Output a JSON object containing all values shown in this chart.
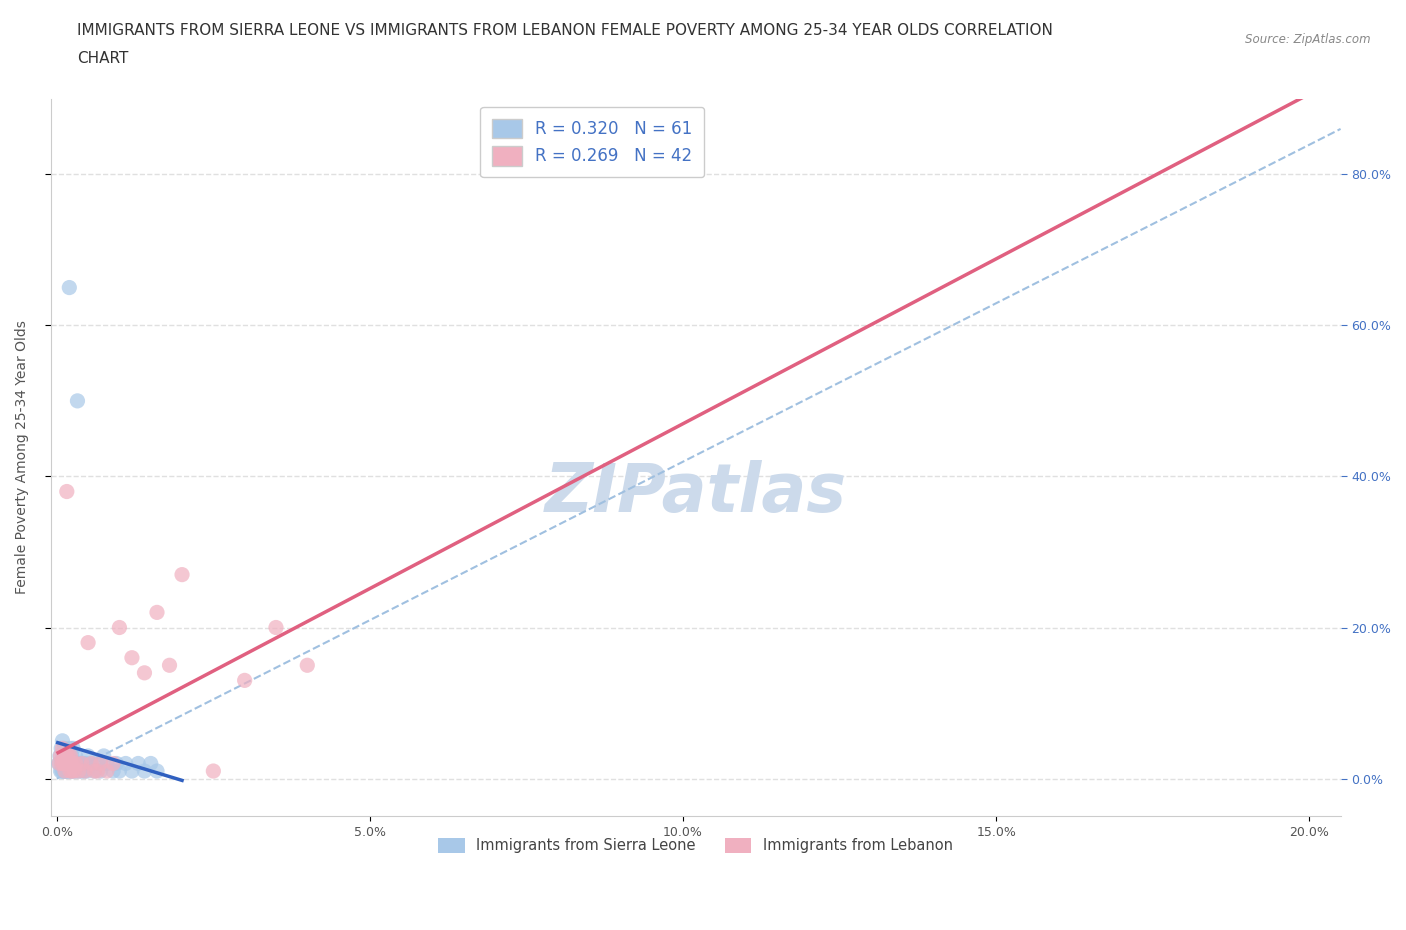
{
  "title_line1": "IMMIGRANTS FROM SIERRA LEONE VS IMMIGRANTS FROM LEBANON FEMALE POVERTY AMONG 25-34 YEAR OLDS CORRELATION",
  "title_line2": "CHART",
  "source": "Source: ZipAtlas.com",
  "ylabel": "Female Poverty Among 25-34 Year Olds",
  "xlim": [
    -0.001,
    0.205
  ],
  "ylim": [
    -0.05,
    0.9
  ],
  "yticks": [
    0.0,
    0.2,
    0.4,
    0.6,
    0.8
  ],
  "right_ytick_labels": [
    "0.0%",
    "20.0%",
    "40.0%",
    "60.0%",
    "80.0%"
  ],
  "xticks": [
    0.0,
    0.05,
    0.1,
    0.15,
    0.2
  ],
  "xtick_labels": [
    "0.0%",
    "5.0%",
    "10.0%",
    "15.0%",
    "20.0%"
  ],
  "sierra_leone_color": "#a8c8e8",
  "lebanon_color": "#f0b0c0",
  "sierra_leone_trend_color": "#3060c0",
  "lebanon_trend_color": "#e06080",
  "dashed_line_color": "#a0c0e0",
  "sierra_leone_R": 0.32,
  "sierra_leone_N": 61,
  "lebanon_R": 0.269,
  "lebanon_N": 42,
  "watermark": "ZIPatlas",
  "legend1_label": "Immigrants from Sierra Leone",
  "legend2_label": "Immigrants from Lebanon",
  "background_color": "#ffffff",
  "grid_color": "#e0e0e0",
  "title_fontsize": 11,
  "axis_label_fontsize": 10,
  "tick_fontsize": 9,
  "watermark_color": "#ccdaeb",
  "watermark_fontsize": 48,
  "sierra_leone_x": [
    0.0003,
    0.0005,
    0.0006,
    0.0007,
    0.0008,
    0.0008,
    0.0009,
    0.001,
    0.001,
    0.0011,
    0.0012,
    0.0012,
    0.0013,
    0.0013,
    0.0014,
    0.0015,
    0.0015,
    0.0016,
    0.0016,
    0.0017,
    0.0018,
    0.0019,
    0.0019,
    0.002,
    0.0021,
    0.0021,
    0.0022,
    0.0023,
    0.0024,
    0.0025,
    0.0026,
    0.0027,
    0.0028,
    0.003,
    0.0031,
    0.0032,
    0.0033,
    0.0035,
    0.0036,
    0.0038,
    0.004,
    0.0042,
    0.0044,
    0.0046,
    0.0048,
    0.005,
    0.0055,
    0.006,
    0.0065,
    0.007,
    0.0075,
    0.008,
    0.009,
    0.0095,
    0.01,
    0.011,
    0.012,
    0.013,
    0.014,
    0.015,
    0.016
  ],
  "sierra_leone_y": [
    0.02,
    0.03,
    0.01,
    0.04,
    0.02,
    0.01,
    0.05,
    0.03,
    0.01,
    0.02,
    0.04,
    0.01,
    0.02,
    0.01,
    0.03,
    0.02,
    0.01,
    0.03,
    0.01,
    0.02,
    0.01,
    0.03,
    0.02,
    0.65,
    0.01,
    0.04,
    0.02,
    0.01,
    0.03,
    0.01,
    0.04,
    0.02,
    0.01,
    0.03,
    0.02,
    0.01,
    0.5,
    0.02,
    0.01,
    0.02,
    0.01,
    0.02,
    0.01,
    0.02,
    0.01,
    0.03,
    0.02,
    0.01,
    0.02,
    0.01,
    0.03,
    0.02,
    0.01,
    0.02,
    0.01,
    0.02,
    0.01,
    0.02,
    0.01,
    0.02,
    0.01
  ],
  "lebanon_x": [
    0.0004,
    0.0006,
    0.0008,
    0.0009,
    0.001,
    0.0011,
    0.0012,
    0.0013,
    0.0014,
    0.0015,
    0.0016,
    0.0017,
    0.0018,
    0.0019,
    0.002,
    0.0021,
    0.0022,
    0.0023,
    0.0024,
    0.0026,
    0.0028,
    0.003,
    0.0035,
    0.004,
    0.0045,
    0.005,
    0.0055,
    0.006,
    0.0065,
    0.007,
    0.008,
    0.009,
    0.01,
    0.012,
    0.014,
    0.016,
    0.018,
    0.02,
    0.025,
    0.03,
    0.035,
    0.04
  ],
  "lebanon_y": [
    0.02,
    0.03,
    0.02,
    0.04,
    0.02,
    0.03,
    0.02,
    0.01,
    0.03,
    0.02,
    0.38,
    0.03,
    0.02,
    0.03,
    0.02,
    0.01,
    0.03,
    0.02,
    0.01,
    0.02,
    0.01,
    0.02,
    0.01,
    0.02,
    0.01,
    0.18,
    0.02,
    0.01,
    0.01,
    0.02,
    0.01,
    0.02,
    0.2,
    0.16,
    0.14,
    0.22,
    0.15,
    0.27,
    0.01,
    0.13,
    0.2,
    0.15
  ]
}
